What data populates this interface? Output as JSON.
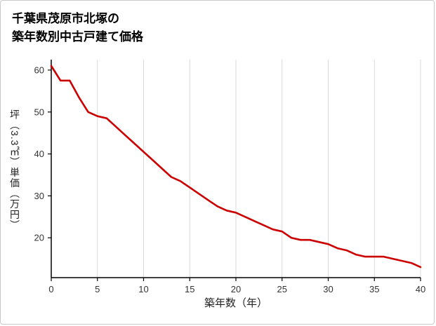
{
  "title": {
    "line1": "千葉県茂原市北塚の",
    "line2": "築年数別中古戸建て価格"
  },
  "chart_data": {
    "type": "line",
    "title": "千葉県茂原市北塚の築年数別中古戸建て価格",
    "xlabel": "築年数（年）",
    "ylabel": "坪（3.3㎡）単価（万円）",
    "x": [
      0,
      1,
      2,
      3,
      4,
      5,
      6,
      7,
      8,
      9,
      10,
      11,
      12,
      13,
      14,
      15,
      16,
      17,
      18,
      19,
      20,
      21,
      22,
      23,
      24,
      25,
      26,
      27,
      28,
      29,
      30,
      31,
      32,
      33,
      34,
      35,
      36,
      37,
      38,
      39,
      40
    ],
    "values": [
      61,
      57.5,
      57.5,
      53.5,
      50,
      49,
      48.5,
      46.5,
      44.5,
      42.5,
      40.5,
      38.5,
      36.5,
      34.5,
      33.5,
      32,
      30.5,
      29,
      27.5,
      26.5,
      26,
      25,
      24,
      23,
      22,
      21.5,
      20,
      19.5,
      19.5,
      19,
      18.5,
      17.5,
      17,
      16,
      15.5,
      15.5,
      15.5,
      15,
      14.5,
      14,
      13
    ],
    "x_ticks": [
      0,
      5,
      10,
      15,
      20,
      25,
      30,
      35,
      40
    ],
    "y_ticks": [
      20,
      30,
      40,
      50,
      60
    ],
    "xlim": [
      0,
      40
    ],
    "ylim": [
      10.5,
      62.5
    ],
    "grid": "vertical-only",
    "legend_position": "none",
    "line_color": "#cc0000",
    "grid_color": "#d9d9d9",
    "axis_color": "#000000",
    "tick_color": "#333333"
  }
}
